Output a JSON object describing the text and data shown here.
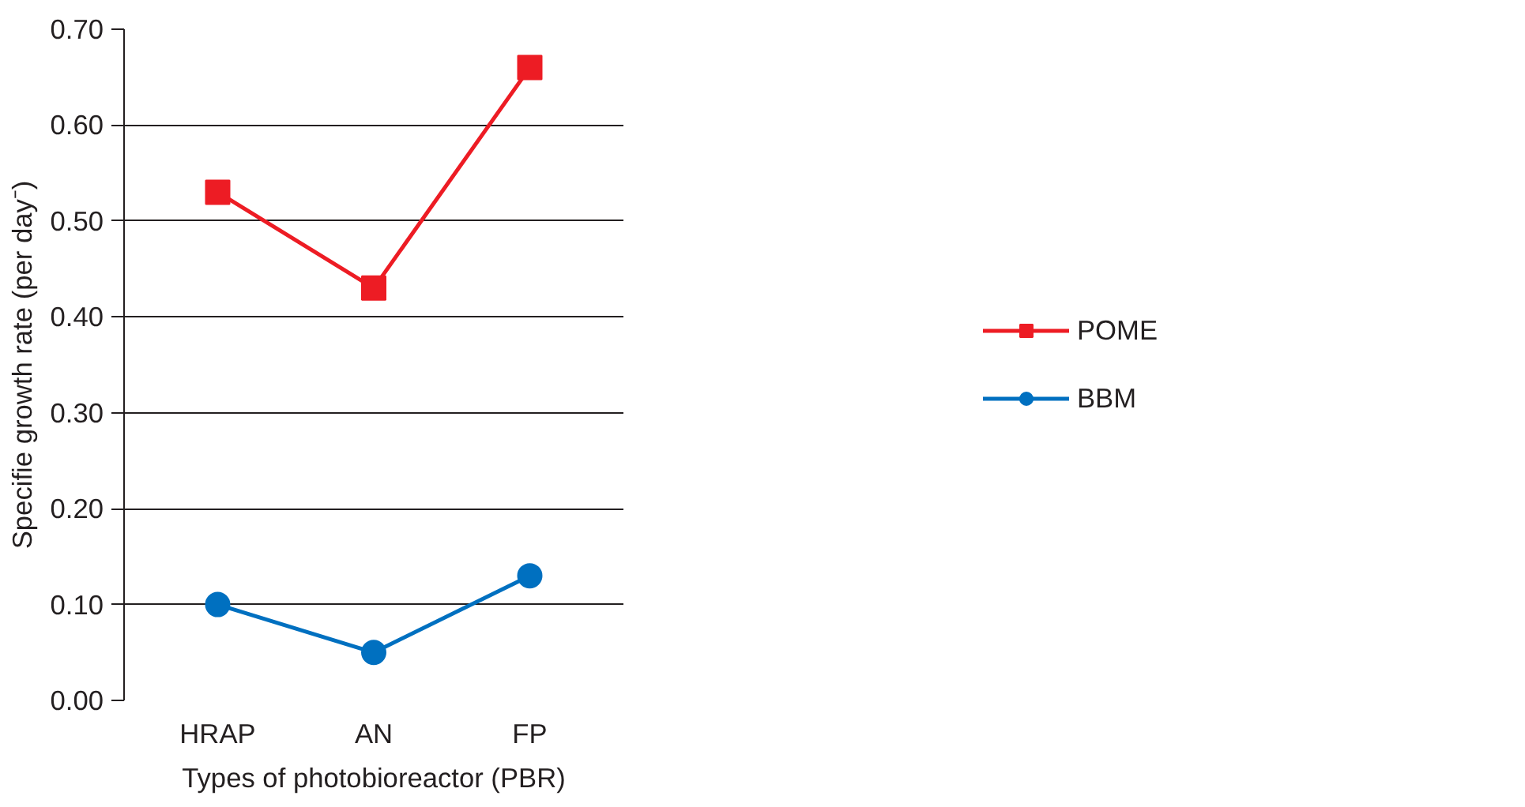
{
  "chart_data": {
    "type": "line",
    "xlabel": "Types of photobioreactor (PBR)",
    "ylabel": "Specifie growth rate (per day⁻)",
    "categories": [
      "HRAP",
      "AN",
      "FP"
    ],
    "series": [
      {
        "name": "POME",
        "color": "#ed1c24",
        "marker": "square",
        "values": [
          0.53,
          0.43,
          0.66
        ]
      },
      {
        "name": "BBM",
        "color": "#0070c0",
        "marker": "circle",
        "values": [
          0.1,
          0.05,
          0.13
        ]
      }
    ],
    "ylim": [
      0,
      0.7
    ],
    "yticks": [
      {
        "value": 0,
        "label": "0.00"
      },
      {
        "value": 0.1,
        "label": "0.10"
      },
      {
        "value": 0.2,
        "label": "0.20"
      },
      {
        "value": 0.3,
        "label": "0.30"
      },
      {
        "value": 0.4,
        "label": "0.40"
      },
      {
        "value": 0.5,
        "label": "0.50"
      },
      {
        "value": 0.6,
        "label": "0.60"
      },
      {
        "value": 0.7,
        "label": "0.70"
      }
    ],
    "grid": "y",
    "legend": "right"
  }
}
